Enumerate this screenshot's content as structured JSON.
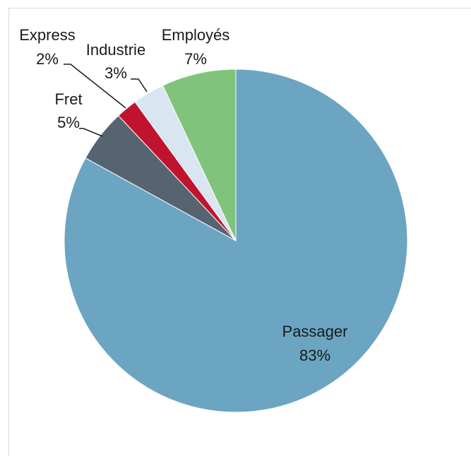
{
  "chart_data": {
    "type": "pie",
    "title": "",
    "slices": [
      {
        "label": "Passager",
        "value": 83,
        "value_label": "83%",
        "color": "#6ba5c1"
      },
      {
        "label": "Fret",
        "value": 5,
        "value_label": "5%",
        "color": "#566472"
      },
      {
        "label": "Express",
        "value": 2,
        "value_label": "2%",
        "color": "#c0142e"
      },
      {
        "label": "Industrie",
        "value": 3,
        "value_label": "3%",
        "color": "#d9e5f1"
      },
      {
        "label": "Employés",
        "value": 7,
        "value_label": "7%",
        "color": "#7fc47a"
      }
    ],
    "start": "12 o'clock",
    "direction": "counterclockwise from Passager after Employés",
    "legend": "none",
    "data_labels": "category name and percentage"
  }
}
